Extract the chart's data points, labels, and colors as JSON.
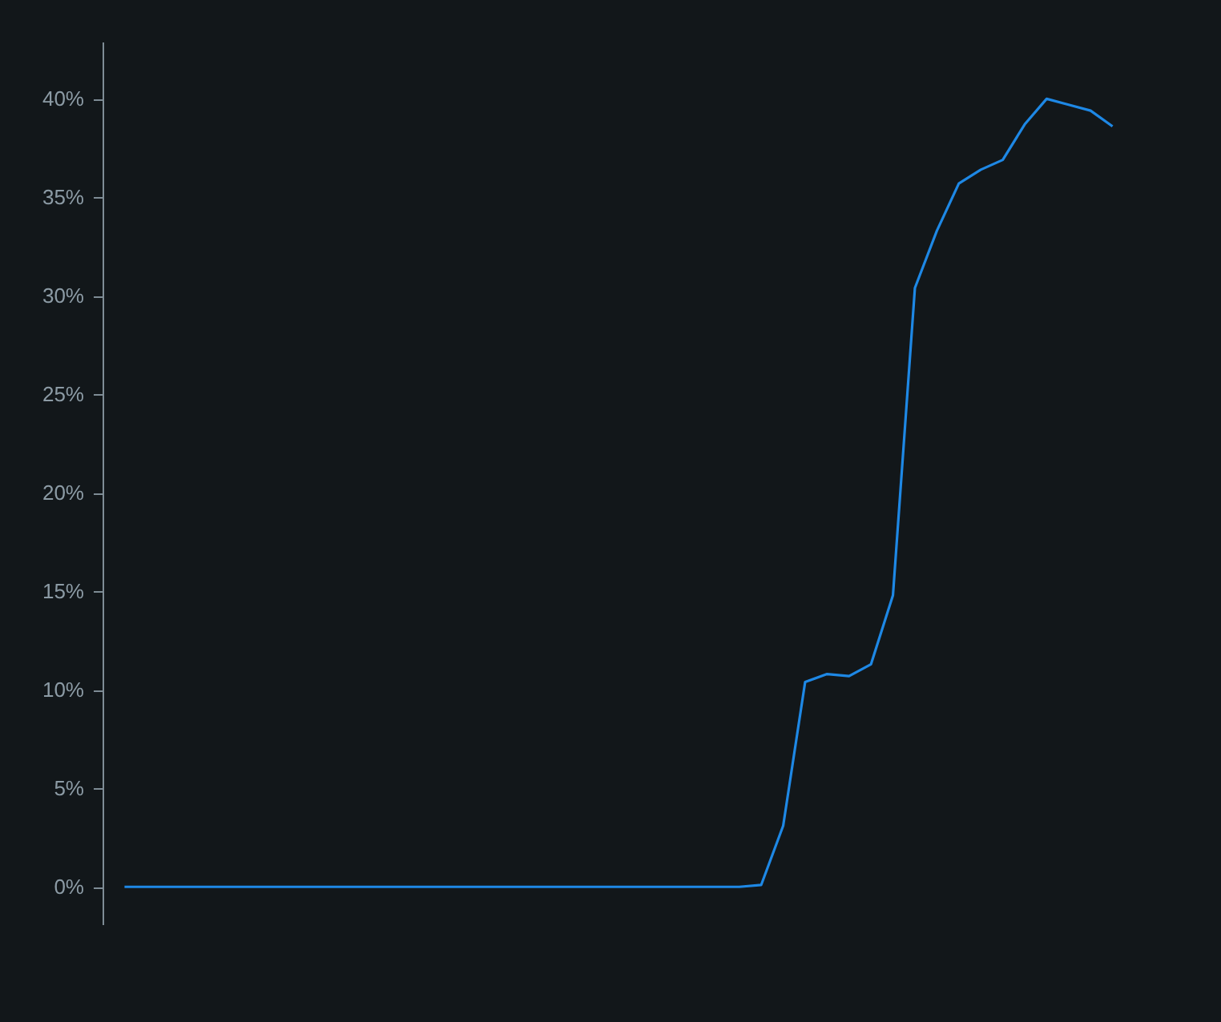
{
  "chart_data": {
    "type": "line",
    "categories": [
      null,
      null,
      null,
      null,
      null,
      null,
      null,
      null,
      null,
      null,
      null,
      null,
      null,
      null,
      null,
      null,
      null,
      null,
      null,
      null,
      null,
      null,
      null,
      null,
      null,
      null,
      null,
      null,
      null,
      null,
      null,
      null,
      null,
      null,
      null,
      null,
      null,
      null,
      null,
      null,
      null,
      null,
      null,
      null,
      null,
      null
    ],
    "series": [
      {
        "color": "#1e88e5",
        "values": [
          0,
          0,
          0,
          0,
          0,
          0,
          0,
          0,
          0,
          0,
          0,
          0,
          0,
          0,
          0,
          0,
          0,
          0,
          0,
          0,
          0,
          0,
          0,
          0,
          0,
          0,
          0,
          0,
          0,
          0.1,
          3.1,
          10.4,
          10.8,
          10.7,
          11.3,
          14.8,
          30.4,
          33.3,
          35.7,
          36.4,
          36.9,
          38.7,
          40.0,
          39.7,
          39.4,
          38.6
        ]
      }
    ],
    "ylim": [
      -1.9,
      42.9
    ],
    "yticks": [
      {
        "value": 0,
        "label": "0%"
      },
      {
        "value": 5,
        "label": "5%"
      },
      {
        "value": 10,
        "label": "10%"
      },
      {
        "value": 15,
        "label": "15%"
      },
      {
        "value": 20,
        "label": "20%"
      },
      {
        "value": 25,
        "label": "25%"
      },
      {
        "value": 30,
        "label": "30%"
      },
      {
        "value": 35,
        "label": "35%"
      },
      {
        "value": 40,
        "label": "40%"
      }
    ],
    "grid": false,
    "tick_labels": "y",
    "marker": "none",
    "line_style": "solid"
  }
}
